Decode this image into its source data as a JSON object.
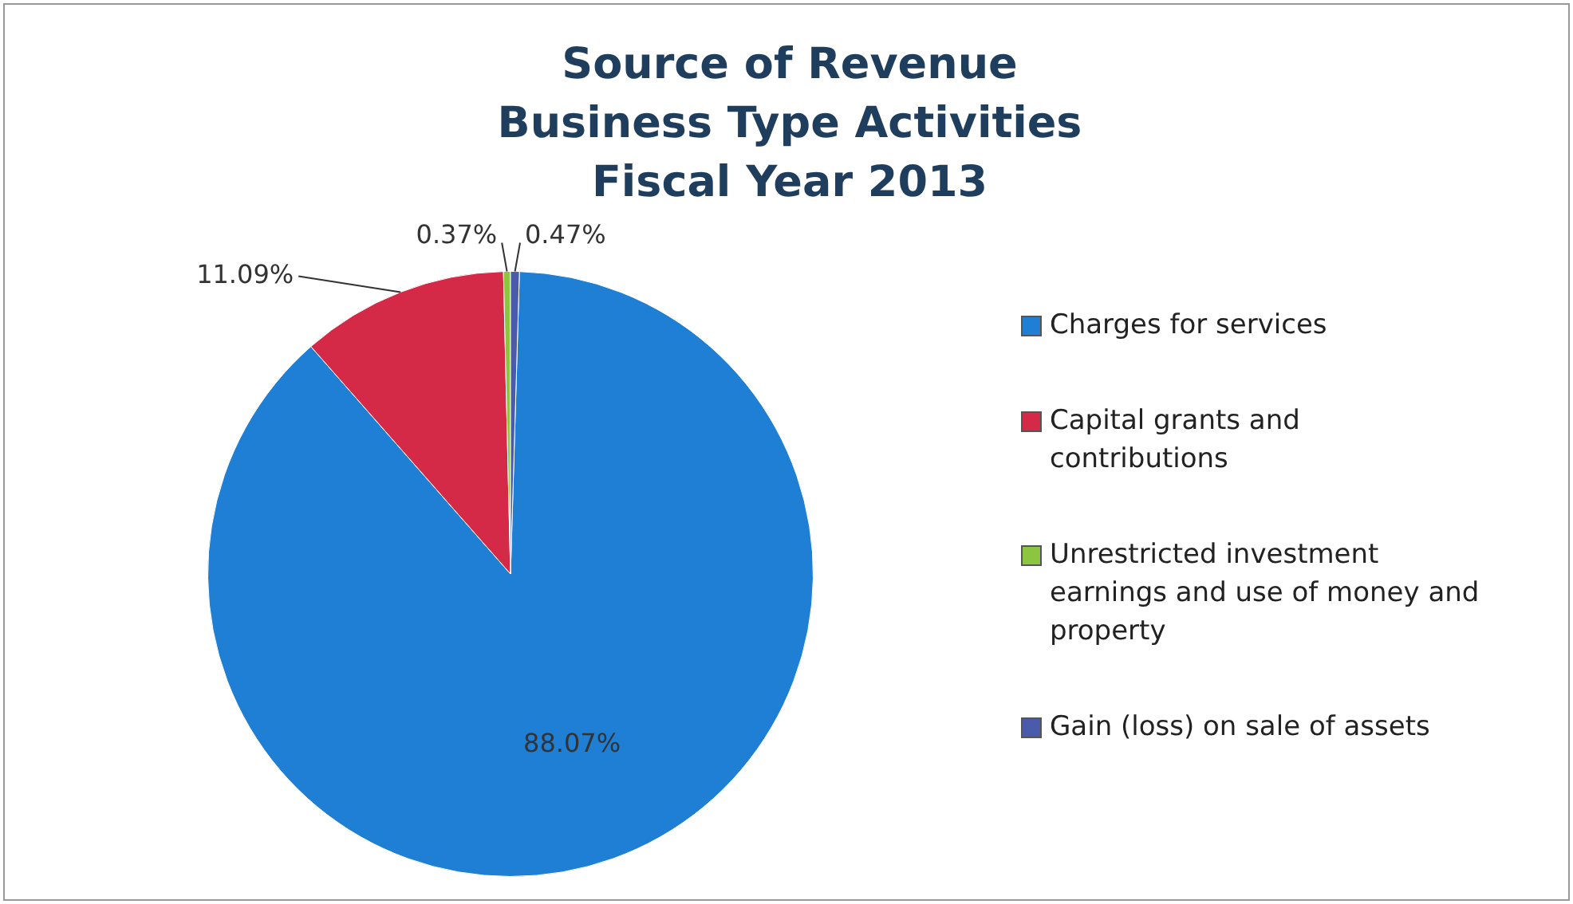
{
  "chart_data": {
    "type": "pie",
    "title": "Source of Revenue\nBusiness Type Activities\nFiscal Year 2013",
    "categories": [
      "Charges for services",
      "Capital grants and contributions",
      "Unrestricted investment earnings and use of money and property",
      "Gain (loss) on sale of assets"
    ],
    "values": [
      88.07,
      11.09,
      0.37,
      0.47
    ],
    "colors": [
      "#1f7fd4",
      "#d42a48",
      "#8cc63e",
      "#4a5bab"
    ],
    "value_labels": [
      "88.07%",
      "11.09%",
      "0.37%",
      "0.47%"
    ],
    "legend": "right"
  }
}
